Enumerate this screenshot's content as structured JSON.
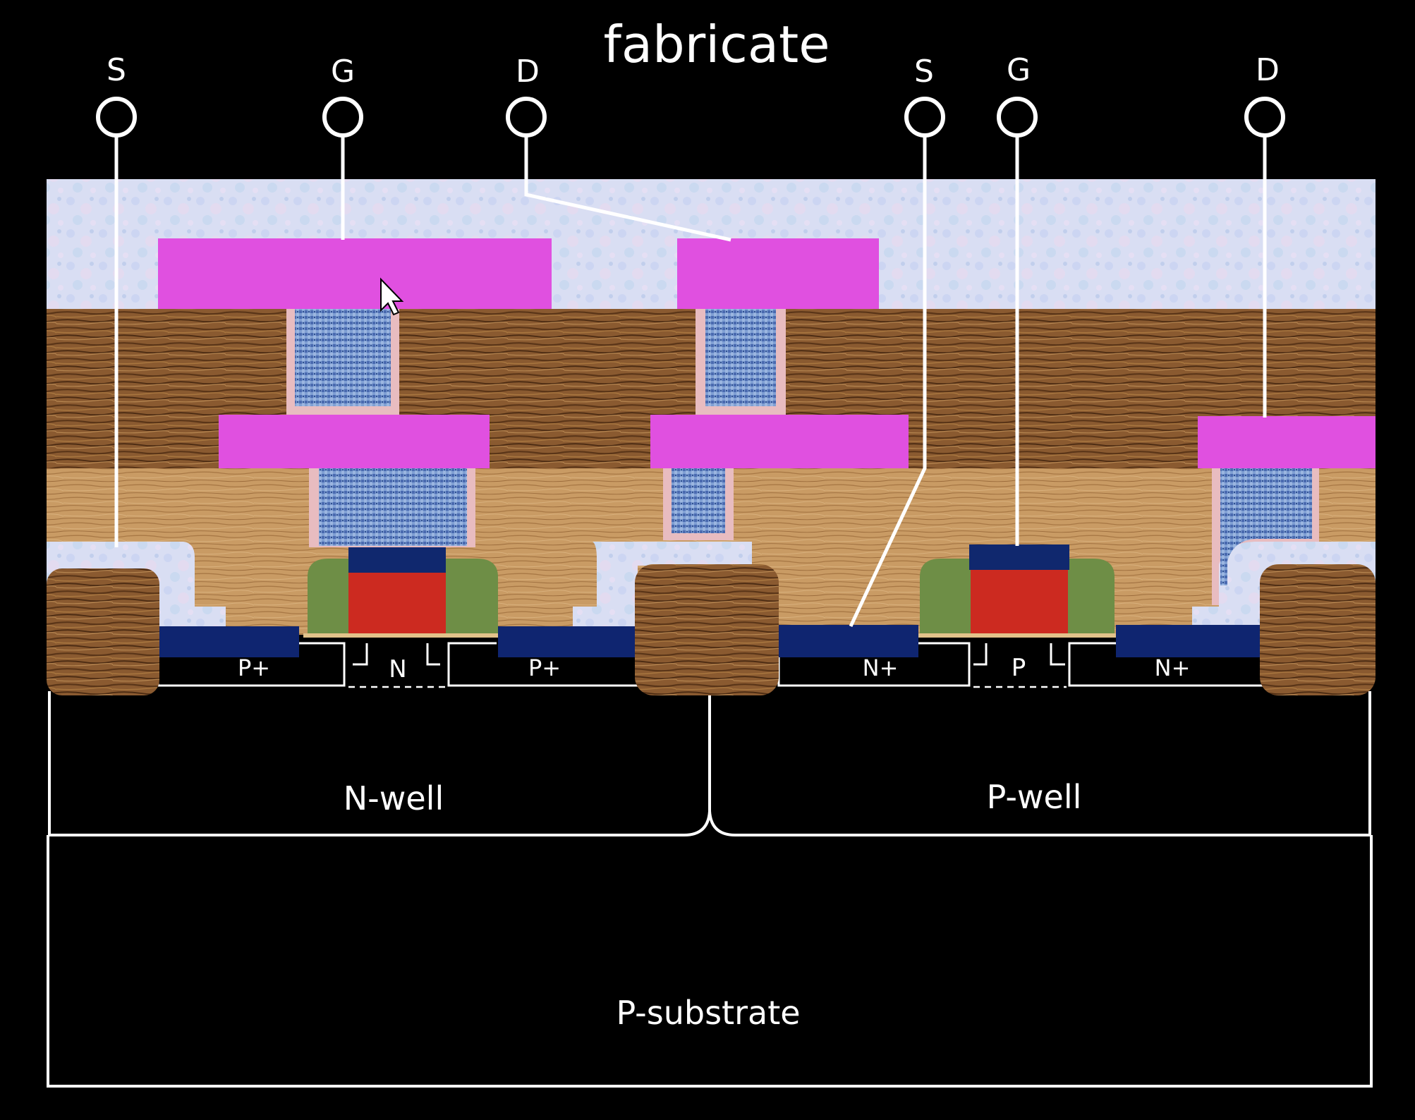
{
  "title": "fabricate",
  "terminals": {
    "pmos_source": "S",
    "pmos_gate": "G",
    "pmos_drain": "D",
    "nmos_source": "S",
    "nmos_gate": "G",
    "nmos_drain": "D"
  },
  "regions": {
    "pmos_left_diffusion": "P+",
    "pmos_channel": "N",
    "pmos_right_diffusion": "P+",
    "nmos_left_diffusion": "N+",
    "nmos_channel": "P",
    "nmos_right_diffusion": "N+",
    "nwell": "N-well",
    "pwell": "P-well",
    "substrate": "P-substrate"
  },
  "colors": {
    "background": "#000000",
    "metal": "#e050e0",
    "via_fill": "#6f8fc8",
    "via_liner": "#e8bcc0",
    "gate_poly": "#cc2a20",
    "gate_silicide": "#10286e",
    "spacer": "#6e8e46",
    "diffusion_contact": "#0f2570",
    "oxide_top": "#d6dcf2",
    "dielectric_dark": "#8a5a30",
    "dielectric_light": "#c79a62",
    "outline": "#ffffff"
  },
  "cursor_icon": "mouse-pointer"
}
